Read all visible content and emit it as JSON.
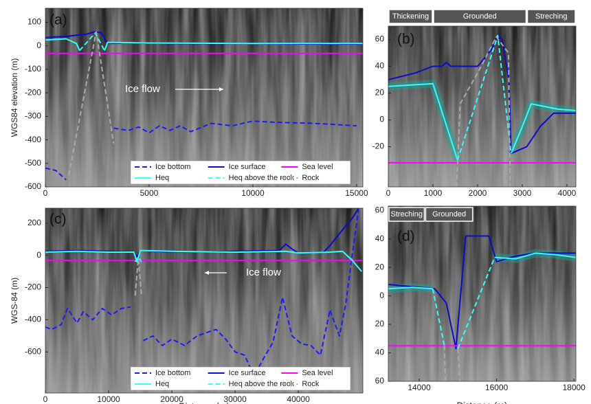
{
  "chart_data": [
    {
      "type": "line",
      "panel_label": "(a)",
      "ylabel": "WGS84 elevation (m)",
      "xlim": [
        0,
        15300
      ],
      "xticks": [
        0,
        5000,
        10000,
        15000
      ],
      "ylim": [
        -600,
        160
      ],
      "yticks": [
        -600,
        -500,
        -400,
        -300,
        -200,
        -100,
        0,
        100
      ],
      "annotation": "Ice flow",
      "annotation_arrow": "right",
      "legend": "lower right",
      "series": [
        {
          "name": "Ice bottom",
          "color": "#1a1aff",
          "linestyle": "dashed",
          "x": [
            0,
            500,
            1000,
            2000,
            3300,
            4000,
            4500,
            5000,
            5500,
            6000,
            6500,
            7000,
            8000,
            9000,
            10000,
            11000,
            13000,
            15000
          ],
          "values": [
            -520,
            -530,
            -570,
            null,
            -350,
            -360,
            -345,
            -370,
            -340,
            -360,
            -340,
            -365,
            -330,
            -340,
            -320,
            -325,
            -330,
            -340
          ]
        },
        {
          "name": "Ice surface",
          "color": "#0a0ad0",
          "linestyle": "solid",
          "x": [
            0,
            500,
            1000,
            1500,
            2000,
            2400,
            2700,
            3000,
            4000,
            6000,
            8000,
            10000,
            12000,
            15300
          ],
          "values": [
            35,
            38,
            40,
            45,
            50,
            60,
            55,
            10,
            12,
            10,
            10,
            10,
            8,
            8
          ]
        },
        {
          "name": "Sea level",
          "color": "#ff00ff",
          "linestyle": "solid",
          "x": [
            0,
            15300
          ],
          "values": [
            -32,
            -32
          ]
        },
        {
          "name": "Heq",
          "color": "#33ffff",
          "linestyle": "solid",
          "x": [
            0,
            1000,
            1500,
            1650,
            2200,
            2850,
            3000,
            5000,
            10000,
            15300
          ],
          "values": [
            25,
            30,
            10,
            -20,
            null,
            -20,
            15,
            12,
            10,
            10
          ]
        },
        {
          "name": "Heq above the rock",
          "color": "#33ffff",
          "linestyle": "dashed",
          "x": [
            1650,
            2400,
            2850
          ],
          "values": [
            -20,
            55,
            -20
          ]
        },
        {
          "name": "Rock",
          "color": "#aaaaaa",
          "linestyle": "dashed",
          "x": [
            1130,
            2450,
            3290
          ],
          "values": [
            -550,
            60,
            -415
          ]
        }
      ]
    },
    {
      "type": "line",
      "panel_label": "(b)",
      "xlim": [
        0,
        4200
      ],
      "xticks": [
        0,
        1000,
        2000,
        3000,
        4000
      ],
      "ylim": [
        -50,
        70
      ],
      "yticks": [
        -20,
        0,
        20,
        40,
        60
      ],
      "phases": [
        {
          "label": "Thickening",
          "start": 0,
          "end": 1000
        },
        {
          "label": "Grounded",
          "start": 1000,
          "end": 3100
        },
        {
          "label": "Streching",
          "start": 3100,
          "end": 4200
        }
      ],
      "series": [
        {
          "color": "#0a0ad0",
          "linestyle": "solid",
          "x": [
            0,
            600,
            1000,
            1200,
            1300,
            1400,
            2000,
            2300,
            2450,
            2550,
            2700,
            2750,
            3100,
            3400,
            3700,
            4000,
            4200
          ],
          "values": [
            30,
            35,
            40,
            40,
            43,
            40,
            40,
            52,
            63,
            60,
            30,
            -25,
            -20,
            -5,
            5,
            5,
            5
          ]
        },
        {
          "color": "#ff00ff",
          "linestyle": "solid",
          "x": [
            0,
            4200
          ],
          "values": [
            -32,
            -32
          ]
        },
        {
          "color": "#33ffff",
          "linestyle": "solid",
          "band": true,
          "x": [
            0,
            500,
            1000,
            1550,
            2150,
            2750,
            3000,
            3200,
            3500,
            3800,
            4200
          ],
          "values": [
            25,
            26,
            27,
            -30,
            null,
            -25,
            -5,
            12,
            10,
            8,
            7
          ]
        },
        {
          "color": "#33ffff",
          "linestyle": "dashed",
          "x": [
            1550,
            2450,
            2750
          ],
          "values": [
            -30,
            63,
            -25
          ]
        },
        {
          "color": "#aaaaaa",
          "linestyle": "dashed",
          "x": [
            1530,
            1610,
            2000,
            2420,
            2690,
            2730
          ],
          "values": [
            -50,
            12,
            35,
            62,
            50,
            -50
          ]
        }
      ]
    },
    {
      "type": "line",
      "panel_label": "(c)",
      "ylabel": "WGS-84 (m)",
      "xlabel": "Distance (m)",
      "xlim": [
        0,
        50200
      ],
      "xticks": [
        0,
        10000,
        20000,
        30000,
        40000
      ],
      "ylim": [
        -855,
        293
      ],
      "yticks": [
        -600,
        -400,
        -200,
        0,
        200
      ],
      "annotation": "Ice flow",
      "annotation_arrow": "left",
      "legend": "lower right",
      "series": [
        {
          "name": "Ice bottom",
          "color": "#1a1aff",
          "linestyle": "dashed",
          "x": [
            0,
            1000,
            2500,
            3500,
            5000,
            6000,
            7500,
            9000,
            10500,
            12000,
            13500,
            14500,
            15500,
            17000,
            18500,
            20000,
            22000,
            24000,
            25500,
            27000,
            28500,
            30000,
            31500,
            33000,
            34500,
            36000,
            37500,
            39000,
            40500,
            42000,
            43500,
            45000,
            46500,
            47500,
            48500,
            49500
          ],
          "values": [
            -445,
            -460,
            -430,
            -330,
            -420,
            -350,
            -400,
            -330,
            -370,
            -330,
            -320,
            null,
            -530,
            -500,
            -560,
            -520,
            -560,
            -500,
            -480,
            -460,
            -520,
            -600,
            -620,
            -750,
            -640,
            -540,
            -260,
            -500,
            -550,
            -560,
            -620,
            -340,
            -500,
            -300,
            0,
            280
          ]
        },
        {
          "name": "Ice surface",
          "color": "#0a0ad0",
          "linestyle": "solid",
          "x": [
            0,
            5000,
            10000,
            14000,
            14500,
            15000,
            20000,
            30000,
            37000,
            38000,
            39000,
            40000,
            44000,
            45000,
            47000,
            48500,
            49500
          ],
          "values": [
            25,
            30,
            25,
            20,
            -10,
            30,
            20,
            25,
            30,
            70,
            40,
            15,
            20,
            60,
            160,
            230,
            290
          ]
        },
        {
          "name": "Sea level",
          "color": "#ff00ff",
          "linestyle": "solid",
          "x": [
            0,
            50200
          ],
          "values": [
            -32,
            -32
          ]
        },
        {
          "name": "Heq",
          "color": "#33ffff",
          "linestyle": "solid",
          "x": [
            0,
            5000,
            10000,
            14000,
            14500,
            15000,
            20000,
            30000,
            38000,
            40000,
            45000,
            47000,
            48500,
            50000
          ],
          "values": [
            20,
            25,
            20,
            20,
            -40,
            30,
            25,
            20,
            25,
            15,
            20,
            25,
            -30,
            -100
          ]
        },
        {
          "name": "Heq above the rock",
          "color": "#33ffff",
          "linestyle": "dashed",
          "x": [
            14200,
            14700,
            15200
          ],
          "values": [
            -40,
            -10,
            -40
          ]
        },
        {
          "name": "Rock",
          "color": "#aaaaaa",
          "linestyle": "dashed",
          "x": [
            14200,
            14700,
            15200
          ],
          "values": [
            -250,
            -20,
            -250
          ]
        }
      ]
    },
    {
      "type": "line",
      "panel_label": "(d)",
      "xlabel": "Distance (m)",
      "xlim": [
        13200,
        18050
      ],
      "xticks": [
        14000,
        16000,
        18000
      ],
      "ylim": [
        -60,
        63
      ],
      "yticks": [
        {
          "value": -60,
          "label": "60"
        },
        {
          "value": -40,
          "label": "40"
        },
        {
          "value": -20,
          "label": "20"
        },
        0,
        20,
        40,
        60
      ],
      "phases": [
        {
          "label": "Streching",
          "start": 13200,
          "end": 14150
        },
        {
          "label": "Grounded",
          "start": 14150,
          "end": 15400
        }
      ],
      "series": [
        {
          "color": "#0a0ad0",
          "linestyle": "solid",
          "x": [
            13200,
            14400,
            14700,
            14950,
            15200,
            15800,
            16000,
            16500,
            17000,
            18050
          ],
          "values": [
            8,
            5,
            -5,
            -37,
            42,
            42,
            24,
            28,
            30,
            30
          ]
        },
        {
          "color": "#ff00ff",
          "linestyle": "solid",
          "x": [
            13200,
            18050
          ],
          "values": [
            -35,
            -35
          ]
        },
        {
          "color": "#33ffff",
          "linestyle": "solid",
          "band": true,
          "x": [
            13200,
            13800,
            14350,
            14700,
            15950,
            16500,
            17000,
            17500,
            18050
          ],
          "values": [
            5,
            6,
            5,
            null,
            27,
            26,
            30,
            29,
            27
          ]
        },
        {
          "color": "#33ffff",
          "linestyle": "dashed",
          "x": [
            14350,
            14650,
            14800,
            15000,
            15950
          ],
          "values": [
            5,
            -35,
            null,
            -37,
            27
          ]
        },
        {
          "color": "#aaaaaa",
          "linestyle": "dashed",
          "x": [
            14650,
            14680,
            14800,
            15000,
            15050
          ],
          "values": [
            -35,
            -60,
            null,
            -37,
            -60
          ]
        }
      ]
    }
  ]
}
